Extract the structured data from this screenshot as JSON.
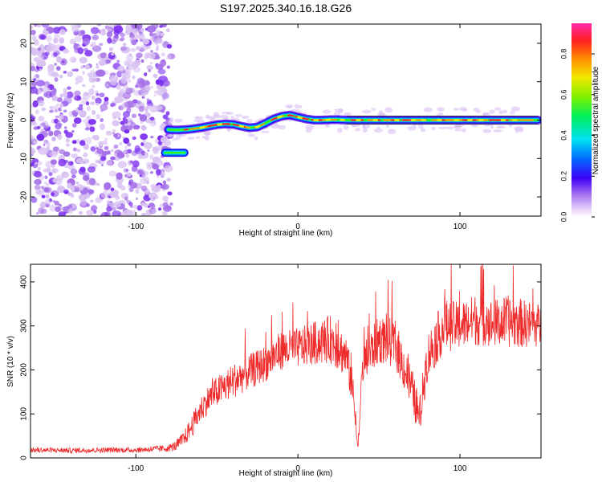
{
  "colors": {
    "snr_line": "#ee2a2a",
    "background": "#ffffff",
    "axis": "#000000",
    "noise_light": "#d9c2f2",
    "noise_mid": "#a46ee8",
    "noise_dark": "#7a2df0"
  },
  "chart_data": [
    {
      "type": "heatmap",
      "title": "S197.2025.340.16.18.G26",
      "xlabel": "Height of straight line (km)",
      "ylabel": "Frequency (Hz)",
      "xlim": [
        -165,
        150
      ],
      "ylim": [
        -25,
        25
      ],
      "x_ticks": [
        -100,
        0,
        100
      ],
      "y_ticks": [
        -20,
        -10,
        0,
        10,
        20
      ],
      "colorbar": {
        "label": "Normalized spectral amplitude",
        "range": [
          0.0,
          0.95
        ],
        "ticks": [
          "0.0",
          "0.2",
          "0.4",
          "0.6",
          "0.8"
        ],
        "tick_values": [
          0.0,
          0.2,
          0.4,
          0.6,
          0.8
        ]
      },
      "noise_region_x_max": -78,
      "signal_ridge": {
        "x": [
          -80,
          -75,
          -70,
          -65,
          -60,
          -55,
          -50,
          -45,
          -40,
          -35,
          -30,
          -25,
          -20,
          -15,
          -10,
          -5,
          0,
          5,
          10,
          15,
          20,
          25,
          30,
          40,
          60,
          80,
          100,
          120,
          145
        ],
        "freq": [
          -2.5,
          -2.6,
          -2.5,
          -2.3,
          -2.0,
          -1.6,
          -1.2,
          -1.0,
          -1.1,
          -1.6,
          -2.0,
          -1.8,
          -0.8,
          0.3,
          1.0,
          1.3,
          0.8,
          0.3,
          0.0,
          0.0,
          0.1,
          0.1,
          0.0,
          0.0,
          0.0,
          0.0,
          0.0,
          0.0,
          0.0
        ]
      },
      "secondary_blob": {
        "x_range": [
          -82,
          -70
        ],
        "freq": -8.5
      }
    },
    {
      "type": "line",
      "xlabel": "Height of straight line (km)",
      "ylabel": "SNR (10 * v/v)",
      "xlim": [
        -165,
        150
      ],
      "ylim": [
        0,
        440
      ],
      "x_ticks": [
        -100,
        0,
        100
      ],
      "y_ticks": [
        0,
        100,
        200,
        300,
        400
      ],
      "series": [
        {
          "name": "SNR",
          "x": [
            -165,
            -140,
            -120,
            -100,
            -80,
            -75,
            -70,
            -65,
            -60,
            -55,
            -50,
            -40,
            -30,
            -20,
            -10,
            0,
            10,
            20,
            30,
            34,
            37,
            40,
            50,
            60,
            70,
            75,
            80,
            90,
            100,
            110,
            120,
            130,
            140,
            150
          ],
          "y": [
            18,
            17,
            18,
            18,
            22,
            28,
            45,
            75,
            110,
            135,
            150,
            175,
            195,
            215,
            245,
            250,
            260,
            270,
            230,
            150,
            20,
            210,
            270,
            260,
            160,
            90,
            230,
            300,
            300,
            315,
            305,
            310,
            305,
            300
          ],
          "noise_amplitude": [
            6,
            6,
            6,
            6,
            8,
            12,
            18,
            25,
            30,
            32,
            35,
            40,
            40,
            42,
            45,
            45,
            50,
            55,
            50,
            40,
            10,
            45,
            55,
            55,
            50,
            45,
            55,
            60,
            55,
            60,
            55,
            60,
            55,
            50
          ]
        }
      ]
    }
  ]
}
